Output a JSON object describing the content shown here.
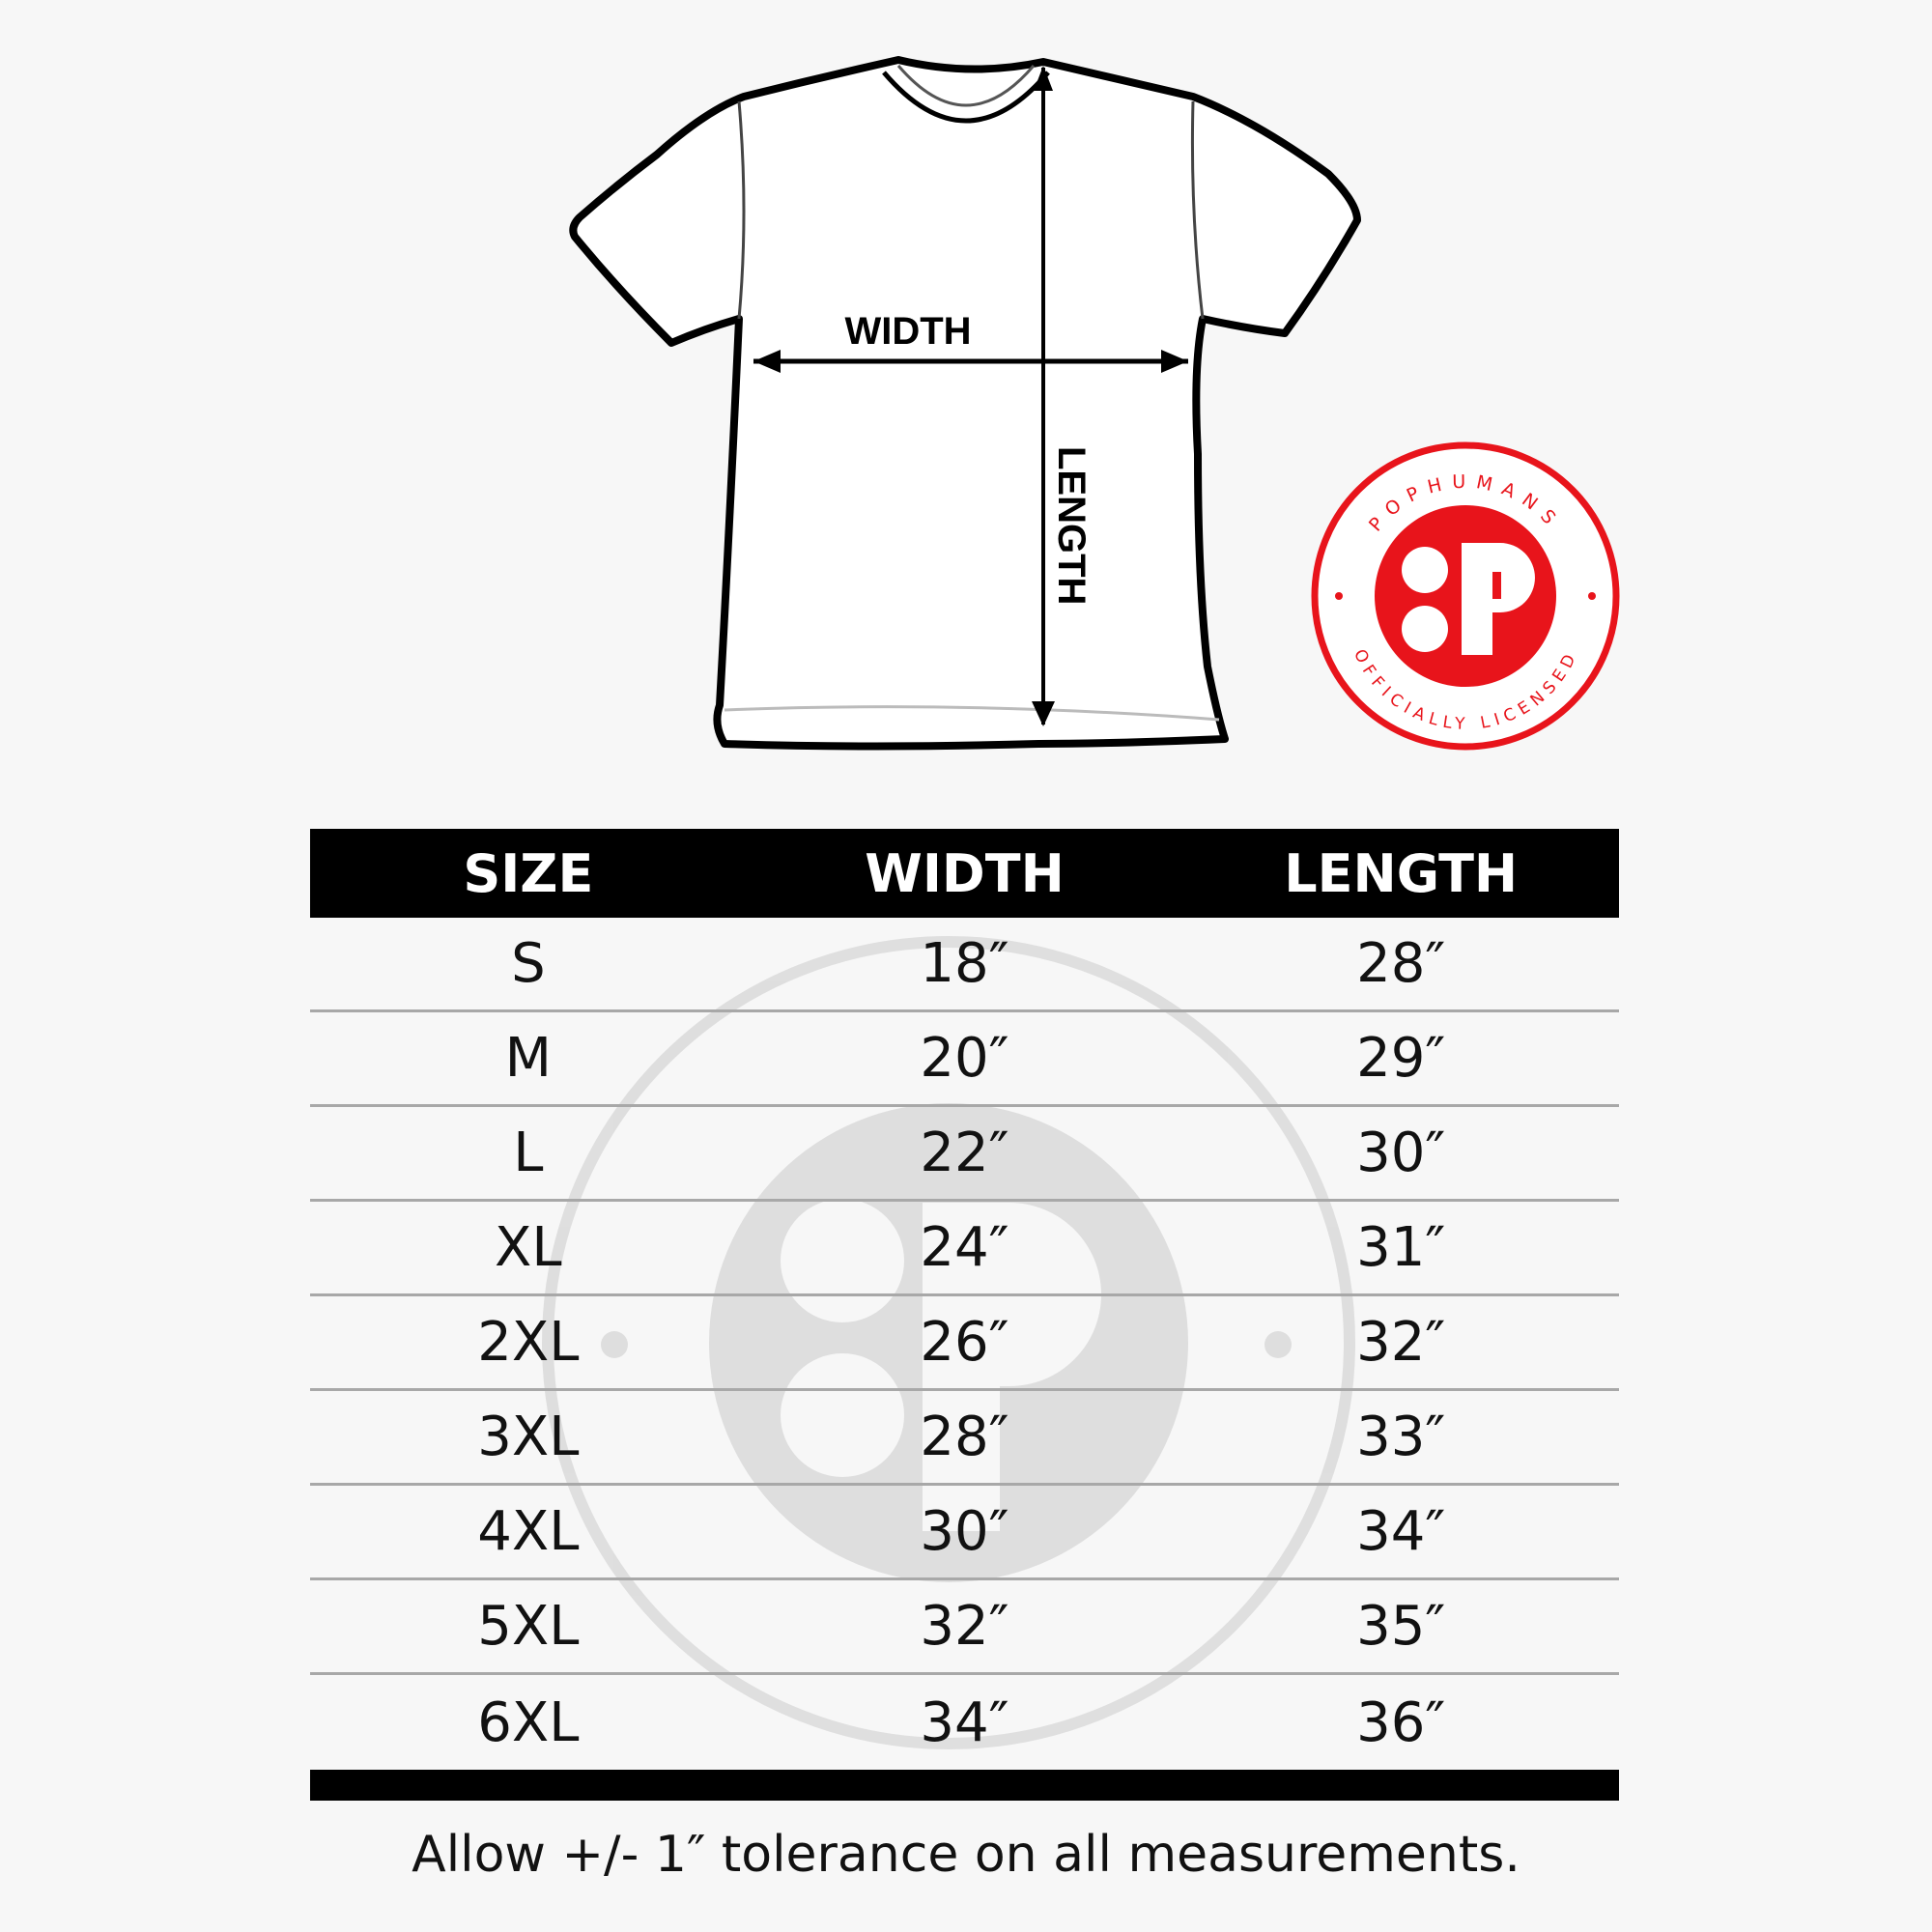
{
  "diagram": {
    "width_label": "WIDTH",
    "length_label": "LENGTH"
  },
  "badge": {
    "top_text": "POPHUMANS",
    "bottom_text": "OFFICIALLY LICENSED",
    "color": "#e8141b"
  },
  "table": {
    "headers": [
      "SIZE",
      "WIDTH",
      "LENGTH"
    ],
    "rows": [
      [
        "S",
        "18″",
        "28″"
      ],
      [
        "M",
        "20″",
        "29″"
      ],
      [
        "L",
        "22″",
        "30″"
      ],
      [
        "XL",
        "24″",
        "31″"
      ],
      [
        "2XL",
        "26″",
        "32″"
      ],
      [
        "3XL",
        "28″",
        "33″"
      ],
      [
        "4XL",
        "30″",
        "34″"
      ],
      [
        "5XL",
        "32″",
        "35″"
      ],
      [
        "6XL",
        "34″",
        "36″"
      ]
    ]
  },
  "footer": "Allow +/- 1″ tolerance on all measurements."
}
